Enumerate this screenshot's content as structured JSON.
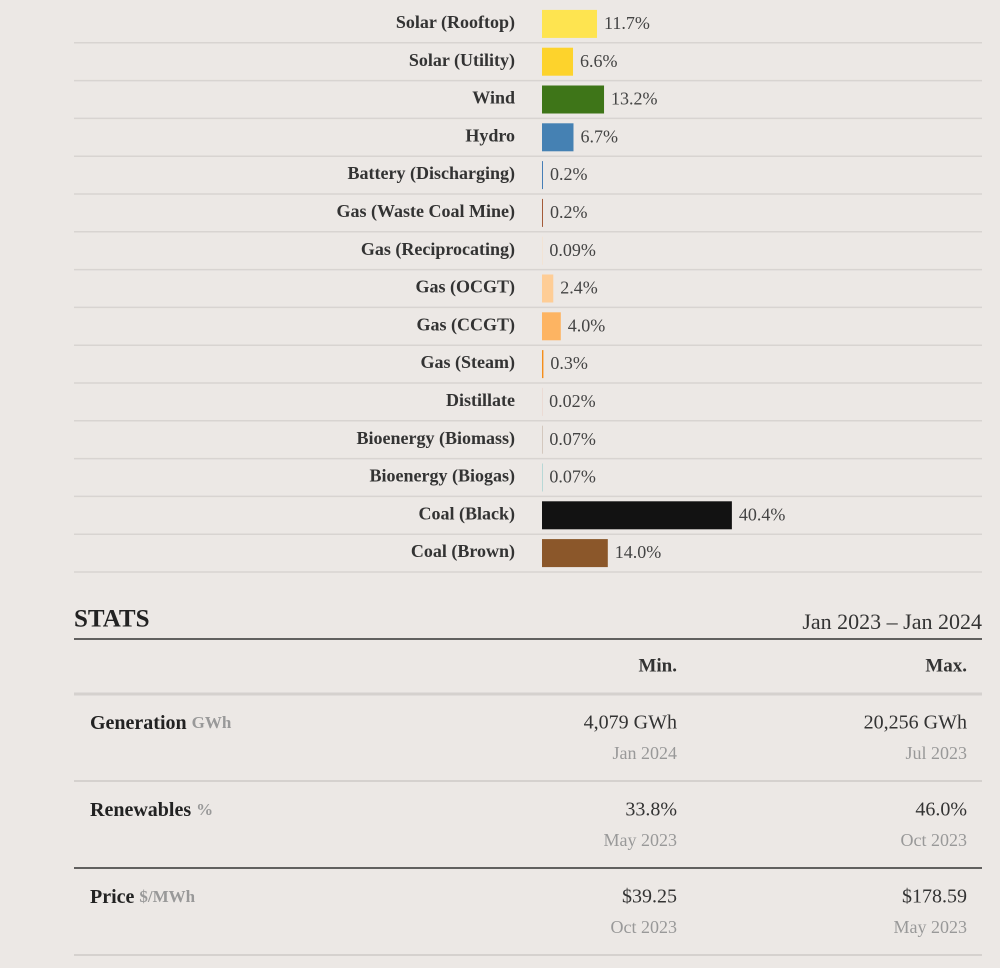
{
  "chart_data": {
    "type": "bar",
    "categories": [
      "Solar (Rooftop)",
      "Solar (Utility)",
      "Wind",
      "Hydro",
      "Battery (Discharging)",
      "Gas (Waste Coal Mine)",
      "Gas (Reciprocating)",
      "Gas (OCGT)",
      "Gas (CCGT)",
      "Gas (Steam)",
      "Distillate",
      "Bioenergy (Biomass)",
      "Bioenergy (Biogas)",
      "Coal (Black)",
      "Coal (Brown)"
    ],
    "values": [
      11.7,
      6.6,
      13.2,
      6.7,
      0.2,
      0.2,
      0.09,
      2.4,
      4.0,
      0.3,
      0.02,
      0.07,
      0.07,
      40.4,
      14.0
    ],
    "value_labels": [
      "11.7%",
      "6.6%",
      "13.2%",
      "6.7%",
      "0.2%",
      "0.2%",
      "0.09%",
      "2.4%",
      "4.0%",
      "0.3%",
      "0.02%",
      "0.07%",
      "0.07%",
      "40.4%",
      "14.0%"
    ],
    "colors": [
      "#fee450",
      "#fdd32c",
      "#3e7518",
      "#4581b3",
      "#3c78b4",
      "#a0522d",
      "#f9dcbc",
      "#fecd96",
      "#fdb462",
      "#f48e1b",
      "#e15c34",
      "#a3886f",
      "#4cb9b9",
      "#121212",
      "#8b572a"
    ]
  },
  "stats": {
    "title": "STATS",
    "period": "Jan 2023 – Jan 2024",
    "columns": [
      "Min.",
      "Max."
    ],
    "rows": [
      {
        "label": "Generation",
        "unit": "GWh",
        "min": {
          "value": "4,079 GWh",
          "date": "Jan 2024"
        },
        "max": {
          "value": "20,256 GWh",
          "date": "Jul 2023"
        }
      },
      {
        "label": "Renewables",
        "unit": "%",
        "min": {
          "value": "33.8%",
          "date": "May 2023"
        },
        "max": {
          "value": "46.0%",
          "date": "Oct 2023"
        }
      },
      {
        "label": "Price",
        "unit": "$/MWh",
        "min": {
          "value": "$39.25",
          "date": "Oct 2023"
        },
        "max": {
          "value": "$178.59",
          "date": "May 2023"
        }
      }
    ]
  }
}
